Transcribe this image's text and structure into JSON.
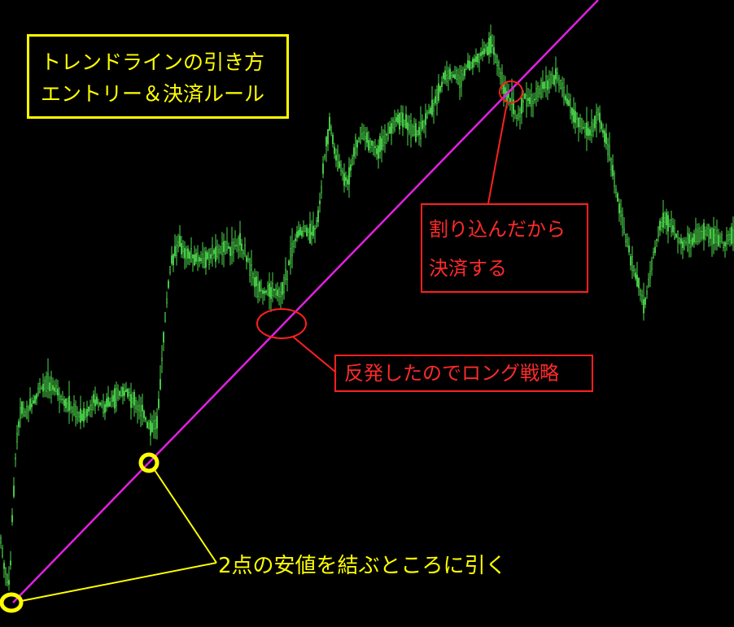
{
  "chart_data": {
    "type": "candlestick",
    "title": "トレンドラインの引き方",
    "subtitle": "エントリー＆決済ルール",
    "xlabel": "",
    "ylabel": "",
    "grid": false,
    "background": "#000000",
    "candle_color": "#4cd94c",
    "trendline_color": "#e020e0",
    "path": [
      [
        0,
        660
      ],
      [
        6,
        700
      ],
      [
        12,
        720
      ],
      [
        15,
        640
      ],
      [
        20,
        545
      ],
      [
        26,
        500
      ],
      [
        32,
        510
      ],
      [
        40,
        495
      ],
      [
        48,
        480
      ],
      [
        60,
        470
      ],
      [
        72,
        485
      ],
      [
        85,
        500
      ],
      [
        100,
        515
      ],
      [
        115,
        495
      ],
      [
        130,
        500
      ],
      [
        145,
        485
      ],
      [
        155,
        480
      ],
      [
        165,
        495
      ],
      [
        175,
        505
      ],
      [
        185,
        530
      ],
      [
        193,
        520
      ],
      [
        197,
        470
      ],
      [
        202,
        400
      ],
      [
        210,
        320
      ],
      [
        220,
        300
      ],
      [
        235,
        315
      ],
      [
        250,
        320
      ],
      [
        265,
        310
      ],
      [
        280,
        305
      ],
      [
        295,
        300
      ],
      [
        305,
        320
      ],
      [
        315,
        350
      ],
      [
        325,
        360
      ],
      [
        335,
        355
      ],
      [
        345,
        360
      ],
      [
        352,
        340
      ],
      [
        358,
        310
      ],
      [
        365,
        290
      ],
      [
        375,
        280
      ],
      [
        385,
        290
      ],
      [
        392,
        260
      ],
      [
        398,
        200
      ],
      [
        405,
        150
      ],
      [
        412,
        190
      ],
      [
        420,
        210
      ],
      [
        428,
        225
      ],
      [
        436,
        180
      ],
      [
        445,
        165
      ],
      [
        455,
        175
      ],
      [
        465,
        185
      ],
      [
        475,
        165
      ],
      [
        485,
        150
      ],
      [
        495,
        145
      ],
      [
        505,
        160
      ],
      [
        515,
        165
      ],
      [
        525,
        140
      ],
      [
        535,
        125
      ],
      [
        545,
        95
      ],
      [
        555,
        90
      ],
      [
        565,
        100
      ],
      [
        575,
        80
      ],
      [
        585,
        75
      ],
      [
        595,
        60
      ],
      [
        605,
        55
      ],
      [
        612,
        80
      ],
      [
        620,
        110
      ],
      [
        628,
        125
      ],
      [
        635,
        145
      ],
      [
        645,
        120
      ],
      [
        655,
        125
      ],
      [
        665,
        110
      ],
      [
        675,
        100
      ],
      [
        685,
        95
      ],
      [
        695,
        120
      ],
      [
        705,
        140
      ],
      [
        715,
        155
      ],
      [
        725,
        165
      ],
      [
        735,
        140
      ],
      [
        745,
        175
      ],
      [
        752,
        205
      ],
      [
        760,
        250
      ],
      [
        768,
        290
      ],
      [
        776,
        320
      ],
      [
        784,
        350
      ],
      [
        792,
        375
      ],
      [
        800,
        330
      ],
      [
        810,
        280
      ],
      [
        818,
        270
      ],
      [
        828,
        285
      ],
      [
        840,
        300
      ],
      [
        852,
        295
      ],
      [
        865,
        285
      ],
      [
        878,
        290
      ],
      [
        890,
        300
      ],
      [
        902,
        285
      ]
    ],
    "trendline": {
      "from": [
        16,
        741
      ],
      "to": [
        735,
        0
      ]
    },
    "annotations": {
      "title_line1": "トレンドラインの引き方",
      "title_line2": "エントリー＆決済ルール",
      "exit_line1": "割り込んだから",
      "exit_line2": "決済する",
      "bounce_label": "反発したのでロング戦略",
      "rule_label": "2点の安値を結ぶところに引く"
    },
    "colors": {
      "title": "#ffff00",
      "exit": "#ff2a2a",
      "bounce": "#ff2a2a",
      "rule": "#ffff00"
    }
  }
}
